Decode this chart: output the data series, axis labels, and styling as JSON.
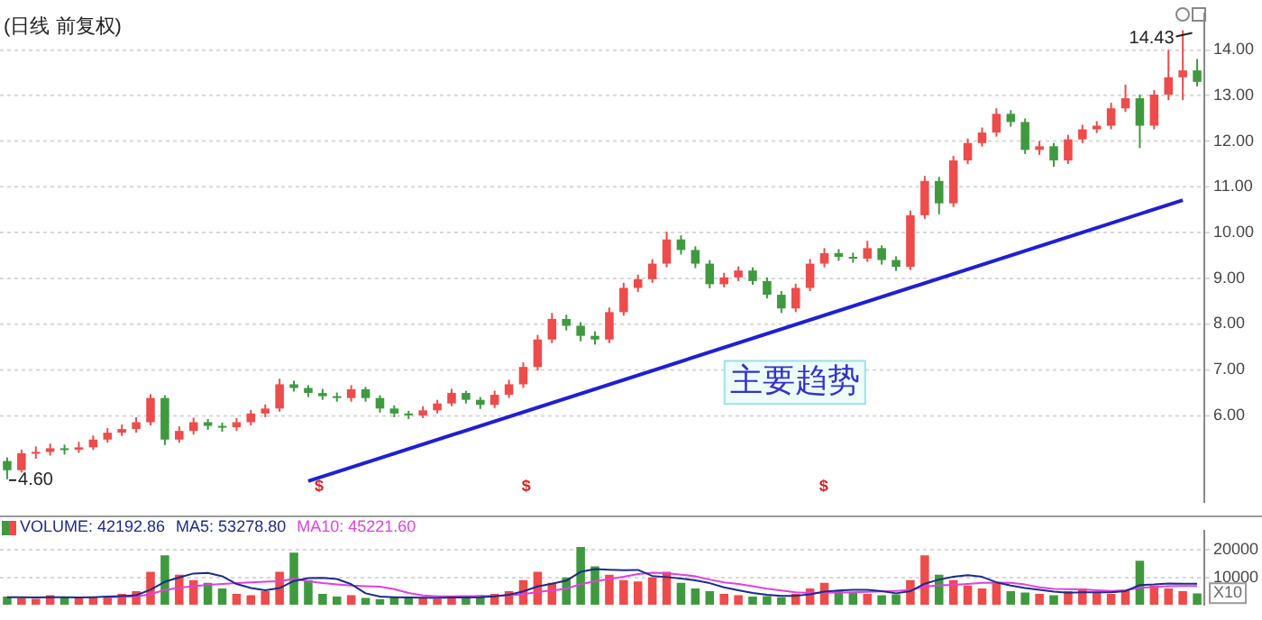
{
  "chart_data": [
    {
      "type": "candlestick",
      "title": "(日线 前复权)",
      "categories": [
        null,
        null,
        null,
        null,
        null,
        null,
        null,
        null,
        null,
        null,
        null,
        null,
        null,
        null,
        null,
        null,
        null,
        null,
        null,
        null,
        null,
        null,
        null,
        null,
        null,
        null,
        null,
        null,
        null,
        null,
        null,
        null,
        null,
        null,
        null,
        null,
        null,
        null,
        null,
        null,
        null,
        null,
        null,
        null,
        null,
        null,
        null,
        null,
        null,
        null,
        null,
        null,
        null,
        null,
        null,
        null,
        null,
        null,
        null,
        null,
        null,
        null,
        null,
        null,
        null,
        null,
        null,
        null,
        null,
        null,
        null,
        null,
        null,
        null,
        null,
        null,
        null,
        null,
        null,
        null,
        null,
        null,
        null,
        null
      ],
      "ohlc": [
        [
          5.0,
          5.08,
          4.6,
          4.8
        ],
        [
          4.8,
          5.25,
          4.75,
          5.17
        ],
        [
          5.17,
          5.32,
          5.05,
          5.2
        ],
        [
          5.2,
          5.38,
          5.12,
          5.28
        ],
        [
          5.28,
          5.36,
          5.14,
          5.25
        ],
        [
          5.25,
          5.42,
          5.18,
          5.3
        ],
        [
          5.3,
          5.56,
          5.24,
          5.47
        ],
        [
          5.47,
          5.72,
          5.4,
          5.62
        ],
        [
          5.62,
          5.8,
          5.55,
          5.7
        ],
        [
          5.7,
          5.96,
          5.62,
          5.85
        ],
        [
          5.85,
          6.46,
          5.78,
          6.38
        ],
        [
          6.38,
          6.44,
          5.35,
          5.47
        ],
        [
          5.47,
          5.76,
          5.4,
          5.66
        ],
        [
          5.66,
          5.95,
          5.58,
          5.85
        ],
        [
          5.85,
          5.92,
          5.68,
          5.77
        ],
        [
          5.77,
          5.84,
          5.64,
          5.74
        ],
        [
          5.74,
          5.94,
          5.66,
          5.85
        ],
        [
          5.85,
          6.12,
          5.78,
          6.04
        ],
        [
          6.04,
          6.24,
          5.96,
          6.15
        ],
        [
          6.15,
          6.8,
          6.08,
          6.68
        ],
        [
          6.68,
          6.76,
          6.52,
          6.6
        ],
        [
          6.6,
          6.66,
          6.4,
          6.49
        ],
        [
          6.49,
          6.58,
          6.34,
          6.42
        ],
        [
          6.42,
          6.5,
          6.3,
          6.38
        ],
        [
          6.38,
          6.66,
          6.3,
          6.57
        ],
        [
          6.57,
          6.62,
          6.3,
          6.38
        ],
        [
          6.38,
          6.44,
          6.06,
          6.15
        ],
        [
          6.15,
          6.22,
          5.96,
          6.04
        ],
        [
          6.04,
          6.1,
          5.92,
          6.0
        ],
        [
          6.0,
          6.2,
          5.94,
          6.11
        ],
        [
          6.11,
          6.34,
          6.04,
          6.26
        ],
        [
          6.26,
          6.58,
          6.2,
          6.49
        ],
        [
          6.49,
          6.54,
          6.26,
          6.34
        ],
        [
          6.34,
          6.4,
          6.14,
          6.23
        ],
        [
          6.23,
          6.54,
          6.16,
          6.45
        ],
        [
          6.45,
          6.78,
          6.38,
          6.68
        ],
        [
          6.68,
          7.16,
          6.6,
          7.06
        ],
        [
          7.06,
          7.76,
          6.98,
          7.66
        ],
        [
          7.66,
          8.24,
          7.58,
          8.11
        ],
        [
          8.11,
          8.2,
          7.86,
          7.96
        ],
        [
          7.96,
          8.04,
          7.62,
          7.74
        ],
        [
          7.74,
          7.84,
          7.55,
          7.66
        ],
        [
          7.66,
          8.36,
          7.58,
          8.26
        ],
        [
          8.26,
          8.9,
          8.18,
          8.79
        ],
        [
          8.79,
          9.08,
          8.7,
          8.98
        ],
        [
          8.98,
          9.42,
          8.9,
          9.32
        ],
        [
          9.32,
          10.02,
          9.24,
          9.85
        ],
        [
          9.85,
          9.94,
          9.52,
          9.62
        ],
        [
          9.62,
          9.7,
          9.22,
          9.32
        ],
        [
          9.32,
          9.4,
          8.78,
          8.87
        ],
        [
          8.87,
          9.12,
          8.8,
          9.02
        ],
        [
          9.02,
          9.26,
          8.94,
          9.17
        ],
        [
          9.17,
          9.24,
          8.86,
          8.94
        ],
        [
          8.94,
          9.02,
          8.56,
          8.64
        ],
        [
          8.64,
          8.72,
          8.24,
          8.34
        ],
        [
          8.34,
          8.88,
          8.26,
          8.79
        ],
        [
          8.79,
          9.42,
          8.72,
          9.32
        ],
        [
          9.32,
          9.66,
          9.24,
          9.55
        ],
        [
          9.55,
          9.64,
          9.38,
          9.47
        ],
        [
          9.47,
          9.56,
          9.34,
          9.43
        ],
        [
          9.43,
          9.82,
          9.36,
          9.66
        ],
        [
          9.66,
          9.72,
          9.3,
          9.4
        ],
        [
          9.4,
          9.48,
          9.16,
          9.25
        ],
        [
          9.25,
          10.48,
          9.18,
          10.38
        ],
        [
          10.38,
          11.24,
          10.3,
          11.13
        ],
        [
          11.13,
          11.22,
          10.4,
          10.64
        ],
        [
          10.64,
          11.68,
          10.56,
          11.58
        ],
        [
          11.58,
          12.06,
          11.5,
          11.96
        ],
        [
          11.96,
          12.3,
          11.88,
          12.19
        ],
        [
          12.19,
          12.72,
          12.1,
          12.6
        ],
        [
          12.6,
          12.68,
          12.32,
          12.42
        ],
        [
          12.42,
          12.5,
          11.72,
          11.81
        ],
        [
          11.81,
          12.0,
          11.7,
          11.89
        ],
        [
          11.89,
          11.96,
          11.44,
          11.58
        ],
        [
          11.58,
          12.14,
          11.5,
          12.04
        ],
        [
          12.04,
          12.36,
          11.96,
          12.26
        ],
        [
          12.26,
          12.44,
          12.18,
          12.34
        ],
        [
          12.34,
          12.84,
          12.26,
          12.72
        ],
        [
          12.72,
          13.24,
          12.64,
          12.94
        ],
        [
          12.94,
          13.02,
          11.85,
          12.34
        ],
        [
          12.34,
          13.12,
          12.26,
          13.02
        ],
        [
          13.02,
          14.0,
          12.9,
          13.4
        ],
        [
          13.4,
          14.43,
          12.9,
          13.55
        ],
        [
          13.55,
          13.8,
          13.2,
          13.3
        ]
      ],
      "colors": [
        "#3f9a3f",
        "#ee4b4b",
        "#ee4b4b",
        "#ee4b4b",
        "#3f9a3f",
        "#ee4b4b",
        "#ee4b4b",
        "#ee4b4b",
        "#ee4b4b",
        "#ee4b4b",
        "#ee4b4b",
        "#3f9a3f",
        "#ee4b4b",
        "#ee4b4b",
        "#3f9a3f",
        "#3f9a3f",
        "#ee4b4b",
        "#ee4b4b",
        "#ee4b4b",
        "#ee4b4b",
        "#3f9a3f",
        "#3f9a3f",
        "#3f9a3f",
        "#3f9a3f",
        "#ee4b4b",
        "#3f9a3f",
        "#3f9a3f",
        "#3f9a3f",
        "#3f9a3f",
        "#ee4b4b",
        "#ee4b4b",
        "#ee4b4b",
        "#3f9a3f",
        "#3f9a3f",
        "#ee4b4b",
        "#ee4b4b",
        "#ee4b4b",
        "#ee4b4b",
        "#ee4b4b",
        "#3f9a3f",
        "#3f9a3f",
        "#3f9a3f",
        "#ee4b4b",
        "#ee4b4b",
        "#ee4b4b",
        "#ee4b4b",
        "#ee4b4b",
        "#3f9a3f",
        "#3f9a3f",
        "#3f9a3f",
        "#ee4b4b",
        "#ee4b4b",
        "#3f9a3f",
        "#3f9a3f",
        "#3f9a3f",
        "#ee4b4b",
        "#ee4b4b",
        "#ee4b4b",
        "#3f9a3f",
        "#3f9a3f",
        "#ee4b4b",
        "#3f9a3f",
        "#3f9a3f",
        "#ee4b4b",
        "#ee4b4b",
        "#3f9a3f",
        "#ee4b4b",
        "#ee4b4b",
        "#ee4b4b",
        "#ee4b4b",
        "#3f9a3f",
        "#3f9a3f",
        "#ee4b4b",
        "#3f9a3f",
        "#ee4b4b",
        "#ee4b4b",
        "#ee4b4b",
        "#ee4b4b",
        "#ee4b4b",
        "#3f9a3f",
        "#ee4b4b",
        "#ee4b4b",
        "#ee4b4b",
        "#3f9a3f"
      ],
      "series": [
        {
          "type": "line",
          "color": "#1f1fd6",
          "values": [
            null,
            null,
            null,
            null,
            null,
            null,
            null,
            null,
            null,
            null,
            null,
            null,
            null,
            null,
            null,
            null,
            null,
            null,
            null,
            null,
            null,
            4.56,
            null,
            null,
            null,
            null,
            null,
            null,
            null,
            null,
            null,
            null,
            null,
            null,
            null,
            null,
            null,
            null,
            null,
            null,
            null,
            null,
            null,
            null,
            null,
            null,
            null,
            null,
            null,
            null,
            null,
            null,
            null,
            null,
            null,
            null,
            null,
            null,
            null,
            null,
            null,
            null,
            null,
            null,
            null,
            null,
            null,
            null,
            null,
            null,
            null,
            null,
            null,
            null,
            null,
            null,
            null,
            null,
            null,
            null,
            null,
            null,
            10.71,
            null
          ]
        }
      ],
      "ylim": [
        4.1,
        14.8
      ],
      "yticks": [
        {
          "value": 6,
          "label": "6.00"
        },
        {
          "value": 7,
          "label": "7.00"
        },
        {
          "value": 8,
          "label": "8.00"
        },
        {
          "value": 9,
          "label": "9.00"
        },
        {
          "value": 10,
          "label": "10.00"
        },
        {
          "value": 11,
          "label": "11.00"
        },
        {
          "value": 12,
          "label": "12.00"
        },
        {
          "value": 13,
          "label": "13.00"
        },
        {
          "value": 14,
          "label": "14.00"
        }
      ],
      "grid": "y",
      "tick_labels": "y",
      "annotations": [
        "14.43",
        "4.60",
        "主要趋势",
        "$",
        "$",
        "$"
      ]
    },
    {
      "type": "bar",
      "categories": [
        null,
        null,
        null,
        null,
        null,
        null,
        null,
        null,
        null,
        null,
        null,
        null,
        null,
        null,
        null,
        null,
        null,
        null,
        null,
        null,
        null,
        null,
        null,
        null,
        null,
        null,
        null,
        null,
        null,
        null,
        null,
        null,
        null,
        null,
        null,
        null,
        null,
        null,
        null,
        null,
        null,
        null,
        null,
        null,
        null,
        null,
        null,
        null,
        null,
        null,
        null,
        null,
        null,
        null,
        null,
        null,
        null,
        null,
        null,
        null,
        null,
        null,
        null,
        null,
        null,
        null,
        null,
        null,
        null,
        null,
        null,
        null,
        null,
        null,
        null,
        null,
        null,
        null,
        null,
        null,
        null,
        null,
        null,
        null
      ],
      "series": [
        {
          "name": "VOLUME: 42192.86",
          "color": "#1c2a8c",
          "colors": [
            "#3f9a3f",
            "#ee4b4b",
            "#ee4b4b",
            "#ee4b4b",
            "#3f9a3f",
            "#ee4b4b",
            "#ee4b4b",
            "#ee4b4b",
            "#ee4b4b",
            "#ee4b4b",
            "#ee4b4b",
            "#3f9a3f",
            "#ee4b4b",
            "#ee4b4b",
            "#3f9a3f",
            "#3f9a3f",
            "#ee4b4b",
            "#ee4b4b",
            "#ee4b4b",
            "#ee4b4b",
            "#3f9a3f",
            "#3f9a3f",
            "#3f9a3f",
            "#3f9a3f",
            "#ee4b4b",
            "#3f9a3f",
            "#3f9a3f",
            "#3f9a3f",
            "#3f9a3f",
            "#ee4b4b",
            "#ee4b4b",
            "#ee4b4b",
            "#3f9a3f",
            "#3f9a3f",
            "#ee4b4b",
            "#ee4b4b",
            "#ee4b4b",
            "#ee4b4b",
            "#ee4b4b",
            "#3f9a3f",
            "#3f9a3f",
            "#3f9a3f",
            "#ee4b4b",
            "#ee4b4b",
            "#ee4b4b",
            "#ee4b4b",
            "#ee4b4b",
            "#3f9a3f",
            "#3f9a3f",
            "#3f9a3f",
            "#ee4b4b",
            "#ee4b4b",
            "#3f9a3f",
            "#3f9a3f",
            "#3f9a3f",
            "#ee4b4b",
            "#ee4b4b",
            "#ee4b4b",
            "#3f9a3f",
            "#3f9a3f",
            "#ee4b4b",
            "#3f9a3f",
            "#3f9a3f",
            "#ee4b4b",
            "#ee4b4b",
            "#3f9a3f",
            "#ee4b4b",
            "#ee4b4b",
            "#ee4b4b",
            "#ee4b4b",
            "#3f9a3f",
            "#3f9a3f",
            "#ee4b4b",
            "#3f9a3f",
            "#ee4b4b",
            "#ee4b4b",
            "#ee4b4b",
            "#ee4b4b",
            "#ee4b4b",
            "#3f9a3f",
            "#ee4b4b",
            "#ee4b4b",
            "#ee4b4b",
            "#3f9a3f"
          ],
          "values": [
            3000,
            2500,
            2200,
            3500,
            2800,
            2500,
            3000,
            3200,
            4000,
            5000,
            12000,
            18000,
            11000,
            9000,
            8000,
            6000,
            4000,
            3500,
            5000,
            12000,
            19000,
            9000,
            4000,
            3000,
            3500,
            2500,
            2000,
            2800,
            3000,
            2500,
            2200,
            3000,
            2800,
            3500,
            4000,
            5000,
            9000,
            12000,
            8000,
            10000,
            21000,
            14000,
            11000,
            9000,
            8500,
            10000,
            12000,
            8000,
            6000,
            5000,
            4000,
            3500,
            3000,
            3200,
            2800,
            4000,
            6000,
            8000,
            5000,
            4500,
            4000,
            3500,
            3800,
            9000,
            18000,
            11000,
            9000,
            7000,
            6000,
            8000,
            5000,
            4500,
            4000,
            3500,
            5000,
            6000,
            4500,
            4000,
            5500,
            16000,
            7000,
            6000,
            5000,
            4200
          ]
        },
        {
          "name": "MA5: 53278.80",
          "type": "line",
          "color": "#1c2a8c",
          "values": [
            2800,
            2800,
            2700,
            2800,
            2800,
            2700,
            2800,
            3000,
            3200,
            3500,
            5500,
            8400,
            10000,
            11400,
            11600,
            10400,
            7600,
            6100,
            5300,
            6100,
            8700,
            9700,
            9800,
            9400,
            7500,
            4200,
            3000,
            2800,
            2700,
            2600,
            2500,
            2700,
            2700,
            2800,
            3100,
            3700,
            4900,
            6700,
            7700,
            8800,
            12000,
            13000,
            12800,
            12600,
            12700,
            10500,
            10100,
            9600,
            8900,
            7900,
            6400,
            5300,
            4300,
            3700,
            3300,
            3300,
            3800,
            4800,
            5200,
            5500,
            5500,
            5000,
            4200,
            5000,
            7700,
            9200,
            10200,
            10800,
            10200,
            8200,
            7000,
            6100,
            5500,
            4800,
            4400,
            4600,
            4600,
            4600,
            5000,
            7200,
            7400,
            7800,
            7700,
            7700
          ]
        },
        {
          "name": "MA10: 45221.60",
          "type": "line",
          "color": "#e040e0",
          "values": [
            null,
            null,
            null,
            null,
            null,
            null,
            null,
            2800,
            2900,
            3000,
            3900,
            5400,
            6200,
            6800,
            7300,
            7600,
            7900,
            8200,
            8400,
            8600,
            9500,
            8600,
            7900,
            7400,
            7000,
            6800,
            6600,
            5700,
            4300,
            3400,
            3100,
            3100,
            3200,
            3200,
            3300,
            3500,
            3800,
            4700,
            5200,
            5900,
            7500,
            8600,
            9400,
            10200,
            11200,
            11700,
            11500,
            11000,
            10400,
            9200,
            8200,
            7600,
            6800,
            5900,
            5200,
            4600,
            4300,
            4400,
            4500,
            4600,
            4700,
            4900,
            5100,
            5400,
            6600,
            7100,
            7300,
            7600,
            8000,
            8100,
            8000,
            7400,
            6400,
            5800,
            5700,
            5600,
            5300,
            5100,
            5300,
            6200,
            6500,
            6800,
            6900,
            6900
          ]
        }
      ],
      "ylim": [
        0,
        27000
      ],
      "yticks": [
        10000,
        20000
      ],
      "grid": "y",
      "tick_labels": "y",
      "legend": "top left",
      "annotations": [
        "X10"
      ]
    }
  ]
}
